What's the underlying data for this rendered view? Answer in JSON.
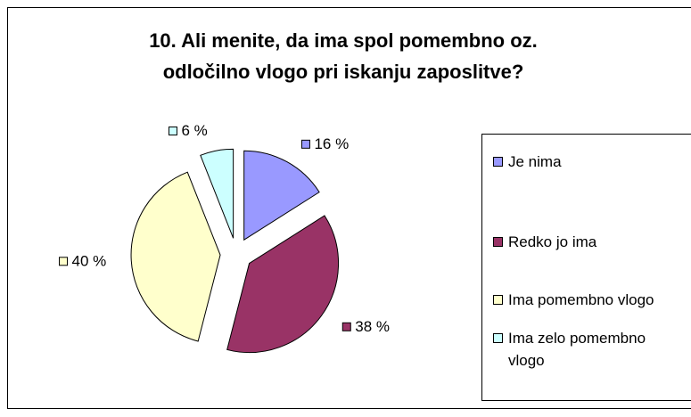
{
  "chart_data": {
    "type": "pie",
    "title": "10. Ali menite, da ima spol pomembno oz. odločilno vlogo pri iskanju zaposlitve?",
    "categories": [
      "Je nima",
      "Redko jo ima",
      "Ima pomembno vlogo",
      "Ima zelo pomembno vlogo"
    ],
    "values": [
      16,
      38,
      40,
      6
    ],
    "value_labels": [
      "16 %",
      "38 %",
      "40 %",
      "6 %"
    ],
    "colors": [
      "#9999ff",
      "#993366",
      "#ffffcc",
      "#ccffff"
    ],
    "legend": "right"
  }
}
